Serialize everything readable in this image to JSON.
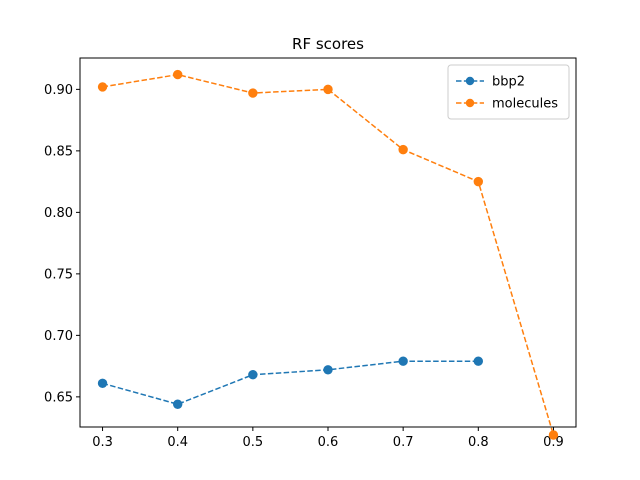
{
  "chart_data": {
    "type": "line",
    "title": "RF scores",
    "xlabel": "",
    "ylabel": "",
    "xlim": [
      0.27,
      0.93
    ],
    "ylim": [
      0.6255,
      0.9255
    ],
    "x_ticks": [
      0.3,
      0.4,
      0.5,
      0.6,
      0.7,
      0.8,
      0.9
    ],
    "x_tick_labels": [
      "0.3",
      "0.4",
      "0.5",
      "0.6",
      "0.7",
      "0.8",
      "0.9"
    ],
    "y_ticks": [
      0.65,
      0.7,
      0.75,
      0.8,
      0.85,
      0.9
    ],
    "y_tick_labels": [
      "0.65",
      "0.70",
      "0.75",
      "0.80",
      "0.85",
      "0.90"
    ],
    "grid": false,
    "legend_position": "top-right",
    "series": [
      {
        "name": "bbp2",
        "color": "#1f77b4",
        "line_style": "dashed",
        "marker": "circle",
        "x": [
          0.3,
          0.4,
          0.5,
          0.6,
          0.7,
          0.8
        ],
        "y": [
          0.661,
          0.644,
          0.668,
          0.672,
          0.679,
          0.679
        ]
      },
      {
        "name": "molecules",
        "color": "#ff7f0e",
        "line_style": "dashed",
        "marker": "circle",
        "x": [
          0.3,
          0.4,
          0.5,
          0.6,
          0.7,
          0.8,
          0.9
        ],
        "y": [
          0.902,
          0.912,
          0.897,
          0.9,
          0.851,
          0.825,
          0.619
        ]
      }
    ]
  }
}
